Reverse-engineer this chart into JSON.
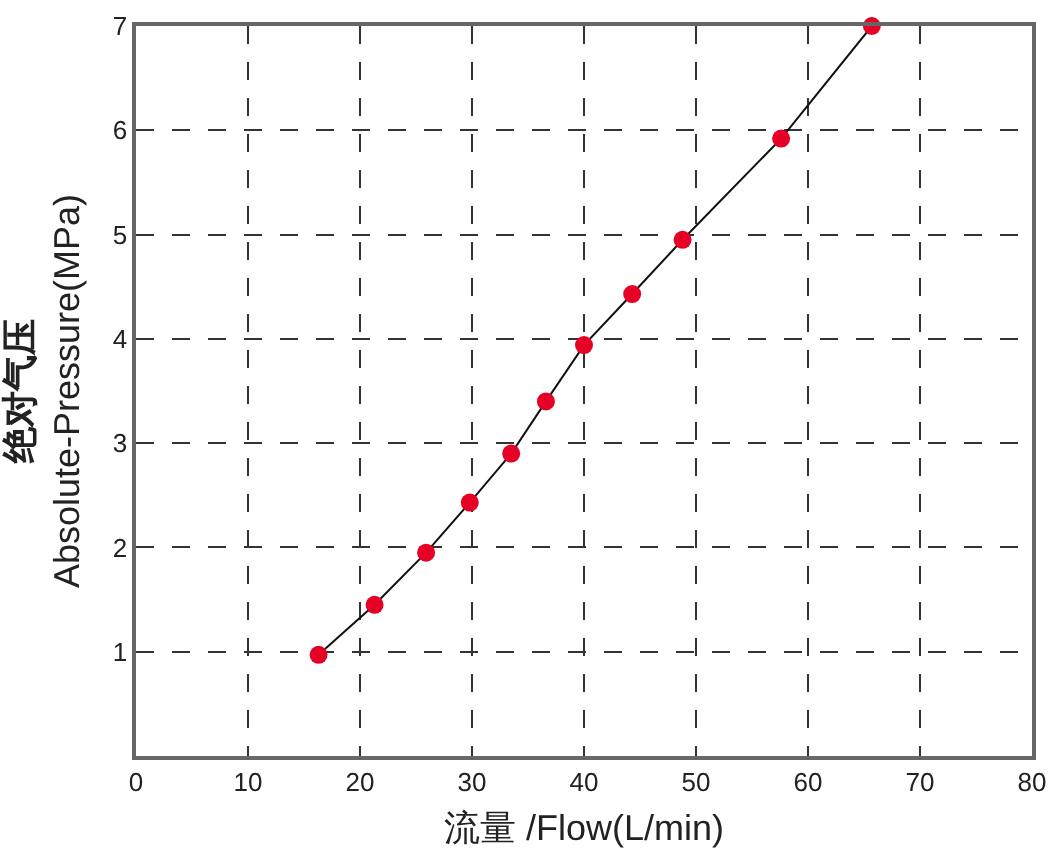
{
  "chart_data": {
    "type": "line",
    "xlabel": "流量 /Flow(L/min)",
    "ylabel": "绝对气压\nAbsolute-Pressure(MPa)",
    "x": [
      16.3,
      21.3,
      25.9,
      29.8,
      33.5,
      36.6,
      40.0,
      44.3,
      48.8,
      57.6,
      65.7
    ],
    "series": [
      {
        "color": "#e60026",
        "values": [
          0.97,
          1.45,
          1.95,
          2.43,
          2.9,
          3.4,
          3.94,
          4.43,
          4.95,
          5.92,
          7.0
        ]
      }
    ],
    "xlim": [
      0,
      80
    ],
    "xticks": [
      0,
      10,
      20,
      30,
      40,
      50,
      60,
      70,
      80
    ],
    "ylim": [
      0,
      7
    ],
    "yticks": [
      1,
      2,
      3,
      4,
      5,
      6,
      7
    ],
    "grid": true,
    "marker": "circle",
    "line_style": "solid"
  }
}
